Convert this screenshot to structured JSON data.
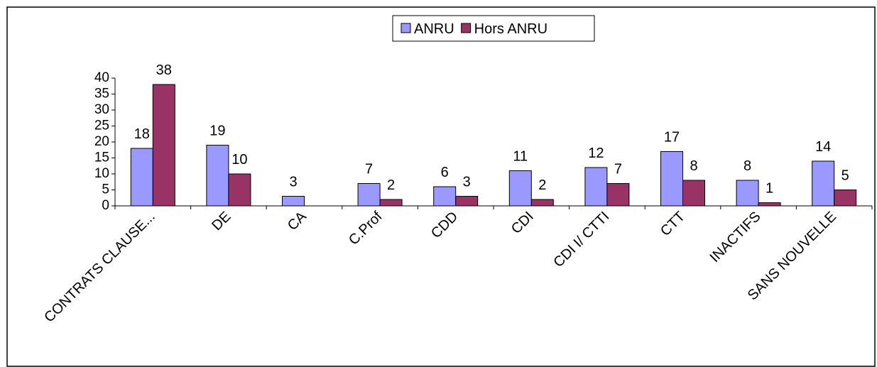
{
  "chart_data": {
    "type": "bar",
    "categories": [
      "CONTRATS CLAUSE...",
      "DE",
      "CA",
      "C.Prof",
      "CDD",
      "CDI",
      "CDI I/ CTTI",
      "CTT",
      "INACTIFS",
      "SANS NOUVELLE"
    ],
    "series": [
      {
        "name": "ANRU",
        "color": "#9999ff",
        "values": [
          18,
          19,
          3,
          7,
          6,
          11,
          12,
          17,
          8,
          14
        ]
      },
      {
        "name": "Hors ANRU",
        "color": "#993366",
        "values": [
          38,
          10,
          null,
          2,
          3,
          2,
          7,
          8,
          1,
          5
        ]
      }
    ],
    "ylim": [
      0,
      40
    ],
    "yticks": [
      0,
      5,
      10,
      15,
      20,
      25,
      30,
      35,
      40
    ],
    "grid": false,
    "legend": "top"
  }
}
